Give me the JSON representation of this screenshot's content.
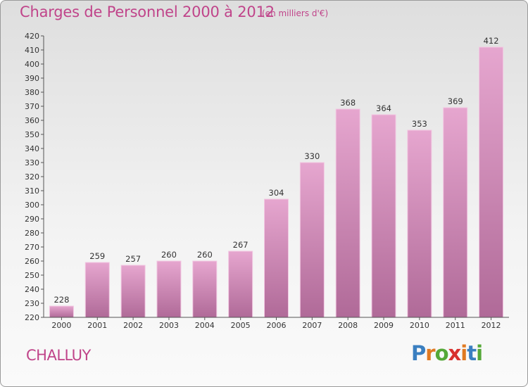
{
  "title": "Charges de Personnel 2000 à 2012",
  "subtitle": "(en milliers d'€)",
  "commune": "CHALLUY",
  "logo": {
    "text": "Proxiti",
    "letter_colors": [
      "#3a7fc0",
      "#e07a22",
      "#55a838",
      "#d8312e",
      "#e07a22",
      "#3a7fc0",
      "#55a838"
    ]
  },
  "colors": {
    "text_accent": "#c0448a",
    "bar_light": "#e6a6cf",
    "bar_dark": "#b06a98",
    "bar_edge": "#f2c8e2"
  },
  "chart_data": {
    "type": "bar",
    "title": "Charges de Personnel 2000 à 2012",
    "subtitle": "(en milliers d'€)",
    "categories": [
      "2000",
      "2001",
      "2002",
      "2003",
      "2004",
      "2005",
      "2006",
      "2007",
      "2008",
      "2009",
      "2010",
      "2011",
      "2012"
    ],
    "values": [
      228,
      259,
      257,
      260,
      260,
      267,
      304,
      330,
      368,
      364,
      353,
      369,
      412
    ],
    "ylim": [
      220,
      420
    ],
    "ytick_step": 10,
    "xlabel": "",
    "ylabel": "",
    "grid": false
  }
}
